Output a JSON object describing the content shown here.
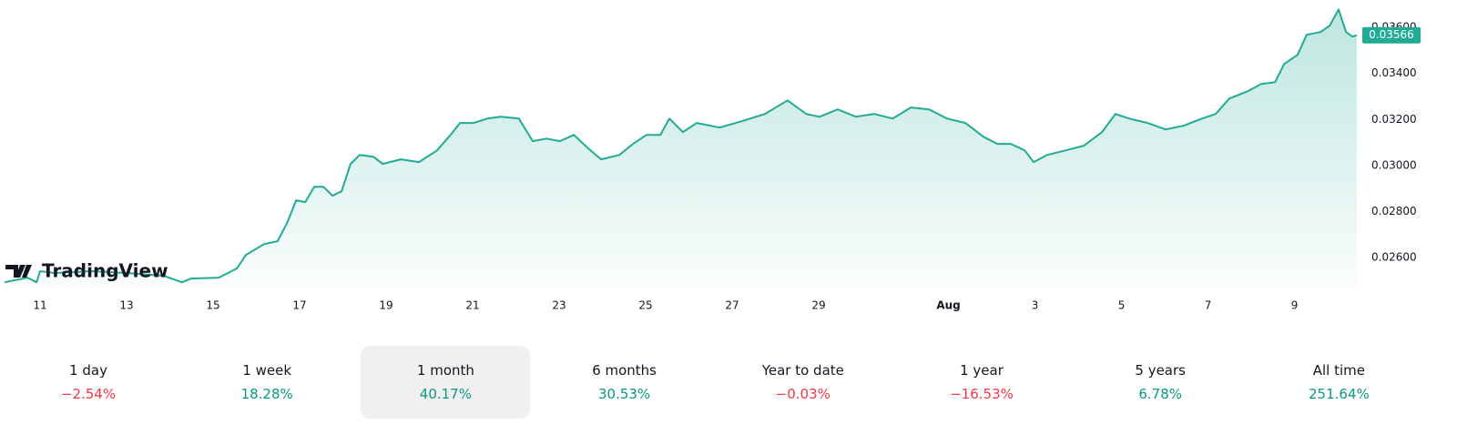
{
  "chart_data": {
    "type": "area",
    "color": "#22ab94",
    "logo": "TradingView",
    "x": [
      -0.82,
      -0.29,
      -0.08,
      0,
      0.34,
      1.18,
      2.02,
      2.86,
      3.28,
      3.49,
      4.13,
      4.55,
      4.76,
      5.18,
      5.49,
      5.71,
      5.92,
      6.13,
      6.34,
      6.55,
      6.76,
      6.97,
      7.18,
      7.39,
      7.71,
      7.92,
      8.34,
      8.76,
      9.18,
      9.49,
      9.71,
      10.02,
      10.34,
      10.65,
      11.07,
      11.39,
      11.71,
      12.02,
      12.34,
      12.65,
      12.97,
      13.39,
      13.71,
      14.02,
      14.34,
      14.55,
      14.86,
      15.18,
      15.71,
      16.23,
      16.76,
      17.28,
      17.71,
      18.02,
      18.44,
      18.86,
      19.28,
      19.71,
      20.13,
      20.55,
      20.97,
      21.39,
      21.81,
      22.13,
      22.44,
      22.76,
      22.97,
      23.28,
      23.71,
      24.13,
      24.55,
      24.86,
      25.18,
      25.6,
      26.02,
      26.44,
      26.86,
      27.18,
      27.49,
      27.92,
      28.23,
      28.55,
      28.76,
      29.07,
      29.28,
      29.6,
      29.81,
      30.02,
      30.19,
      30.34,
      30.44
    ],
    "values": [
      0.02493,
      0.02513,
      0.02493,
      0.02541,
      0.02533,
      0.02541,
      0.02533,
      0.02521,
      0.02493,
      0.02509,
      0.02513,
      0.02553,
      0.02612,
      0.02659,
      0.02671,
      0.0275,
      0.02849,
      0.02841,
      0.02908,
      0.02908,
      0.02869,
      0.02888,
      0.03007,
      0.03046,
      0.03038,
      0.03007,
      0.03027,
      0.03015,
      0.03066,
      0.03133,
      0.03185,
      0.03185,
      0.03204,
      0.03212,
      0.03204,
      0.03106,
      0.03117,
      0.03106,
      0.03133,
      0.03078,
      0.03027,
      0.03046,
      0.03094,
      0.03133,
      0.03133,
      0.03204,
      0.03145,
      0.03185,
      0.03165,
      0.03193,
      0.03224,
      0.03283,
      0.03224,
      0.03212,
      0.03244,
      0.03212,
      0.03224,
      0.03204,
      0.03252,
      0.03244,
      0.03204,
      0.03185,
      0.03125,
      0.03094,
      0.03094,
      0.03066,
      0.03015,
      0.03046,
      0.03066,
      0.03086,
      0.03145,
      0.03224,
      0.03204,
      0.03185,
      0.03157,
      0.03173,
      0.03204,
      0.03224,
      0.03291,
      0.03323,
      0.03354,
      0.03362,
      0.03441,
      0.03481,
      0.03568,
      0.0358,
      0.03607,
      0.03678,
      0.0358,
      0.0356,
      0.03566
    ],
    "xlim": [
      -0.82,
      30.44
    ],
    "xticks": [
      {
        "value": 0,
        "label": "11"
      },
      {
        "value": 2,
        "label": "13"
      },
      {
        "value": 4,
        "label": "15"
      },
      {
        "value": 6,
        "label": "17"
      },
      {
        "value": 8,
        "label": "19"
      },
      {
        "value": 10,
        "label": "21"
      },
      {
        "value": 12,
        "label": "23"
      },
      {
        "value": 14,
        "label": "25"
      },
      {
        "value": 16,
        "label": "27"
      },
      {
        "value": 18,
        "label": "29"
      },
      {
        "value": 21,
        "label": "Aug"
      },
      {
        "value": 23,
        "label": "3"
      },
      {
        "value": 25,
        "label": "5"
      },
      {
        "value": 27,
        "label": "7"
      },
      {
        "value": 29,
        "label": "9"
      }
    ],
    "ylim": [
      0.02462,
      0.03719
    ],
    "yticks": [
      {
        "value": 0.026,
        "label": "0.02600"
      },
      {
        "value": 0.028,
        "label": "0.02800"
      },
      {
        "value": 0.03,
        "label": "0.03000"
      },
      {
        "value": 0.032,
        "label": "0.03200"
      },
      {
        "value": 0.034,
        "label": "0.03400"
      },
      {
        "value": 0.036,
        "label": "0.03600"
      }
    ],
    "last_price": {
      "value": 0.03566,
      "label": "0.03566"
    }
  },
  "performance": {
    "periods": [
      "1 day",
      "1 week",
      "1 month",
      "6 months",
      "Year to date",
      "1 year",
      "5 years",
      "All time"
    ],
    "values": [
      -2.54,
      18.28,
      40.17,
      30.53,
      -0.03,
      -16.53,
      6.78,
      251.64
    ],
    "value_labels": [
      "−2.54%",
      "18.28%",
      "40.17%",
      "30.53%",
      "−0.03%",
      "−16.53%",
      "6.78%",
      "251.64%"
    ],
    "selected": 2
  }
}
